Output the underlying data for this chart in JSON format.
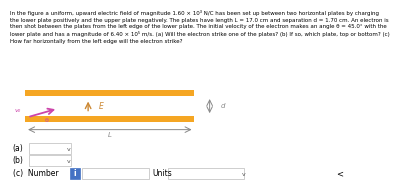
{
  "bg_color": "#ffffff",
  "text_color": "#000000",
  "plate_color": "#F5A623",
  "top_plate_color": "#F5A623",
  "header_text": "In the figure a uniform, upward electric field of magnitude 1.60 × 10³ N/C has been set up between two horizontal plates by charging\nthe lower plate positively and the upper plate negatively. The plates have length L = 17.0 cm and separation d = 1.70 cm. An electron is\nthen shot between the plates from the left edge of the lower plate. The initial velocity of the electron makes an angle θ = 45.0° with the\nlower plate and has a magnitude of 6.40 × 10⁵ m/s. (a) Will the electron strike one of the plates? (b) If so, which plate, top or bottom? (c)\nHow far horizontally from the left edge will the electron strike?",
  "E_label": "E",
  "d_label": "d",
  "L_label": "L",
  "v0_label": "v₀",
  "theta_label": "θ",
  "answer_a_label": "(a)",
  "answer_b_label": "(b)",
  "answer_c_label": "(c)  Number",
  "units_label": "Units",
  "info_color": "#4472C4",
  "arrow_color": "#CC44AA",
  "E_arrow_color": "#CC8833",
  "bracket_color": "#888888"
}
